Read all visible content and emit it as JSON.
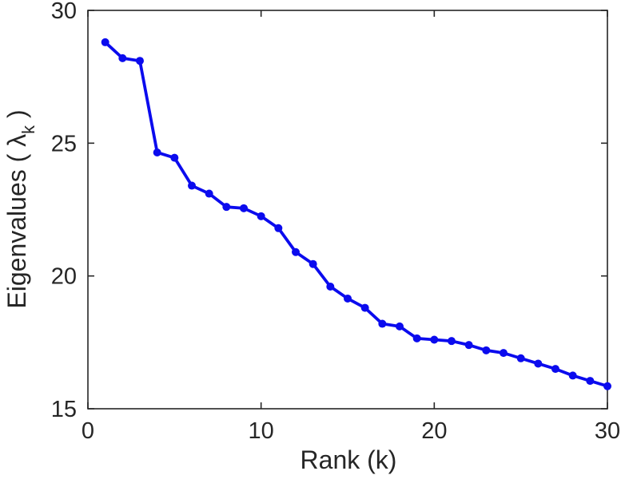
{
  "figure": {
    "background": "#ffffff"
  },
  "chart_data": {
    "type": "line",
    "title": "",
    "xlabel": "Rank (k)",
    "ylabel": "Eigenvalues ( λ_k )",
    "ylabel_prefix": "Eigenvalues ( λ",
    "ylabel_sub": "k",
    "ylabel_suffix": " )",
    "x": [
      1,
      2,
      3,
      4,
      5,
      6,
      7,
      8,
      9,
      10,
      11,
      12,
      13,
      14,
      15,
      16,
      17,
      18,
      19,
      20,
      21,
      22,
      23,
      24,
      25,
      26,
      27,
      28,
      29,
      30
    ],
    "y": [
      28.8,
      28.2,
      28.1,
      24.65,
      24.45,
      23.4,
      23.1,
      22.6,
      22.55,
      22.25,
      21.8,
      20.9,
      20.45,
      19.6,
      19.15,
      18.8,
      18.2,
      18.1,
      17.65,
      17.6,
      17.55,
      17.4,
      17.2,
      17.1,
      16.9,
      16.7,
      16.5,
      16.25,
      16.05,
      15.85
    ],
    "xlim": [
      0,
      30
    ],
    "ylim": [
      15,
      30
    ],
    "xticks": [
      0,
      10,
      20,
      30
    ],
    "yticks": [
      15,
      20,
      25,
      30
    ],
    "grid": false,
    "box": true,
    "legend": null,
    "line_color": "#0b0bee",
    "marker": "circle",
    "marker_color": "#0b0bee",
    "axis_color": "#262626"
  }
}
